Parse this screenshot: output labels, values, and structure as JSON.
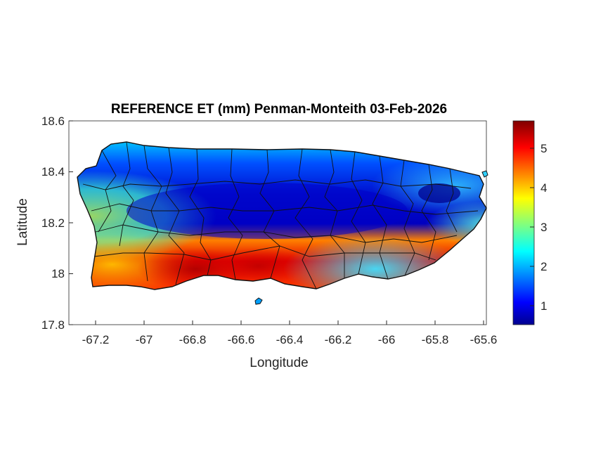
{
  "title": "REFERENCE ET (mm) Penman-Monteith 03-Feb-2026",
  "xlabel": "Longitude",
  "ylabel": "Latitude",
  "xticks": [
    "-67.2",
    "-67",
    "-66.8",
    "-66.6",
    "-66.4",
    "-66.2",
    "-66",
    "-65.8",
    "-65.6"
  ],
  "yticks": [
    "18.6",
    "18.4",
    "18.2",
    "18",
    "17.8"
  ],
  "colorbar": {
    "ticks": [
      "5",
      "4",
      "3",
      "2",
      "1"
    ],
    "range": [
      0.5,
      5.7
    ],
    "colormap": "jet"
  },
  "map": {
    "region": "Puerto Rico",
    "xlim": [
      -67.3,
      -65.58
    ],
    "ylim": [
      17.8,
      18.6
    ],
    "variable": "Reference evapotranspiration (mm)",
    "pattern": "high values (4.5-5.7) along south coast, low values (0.5-1.5) over central mountains and northeast, moderate (2-3) on north coast and west tip"
  }
}
